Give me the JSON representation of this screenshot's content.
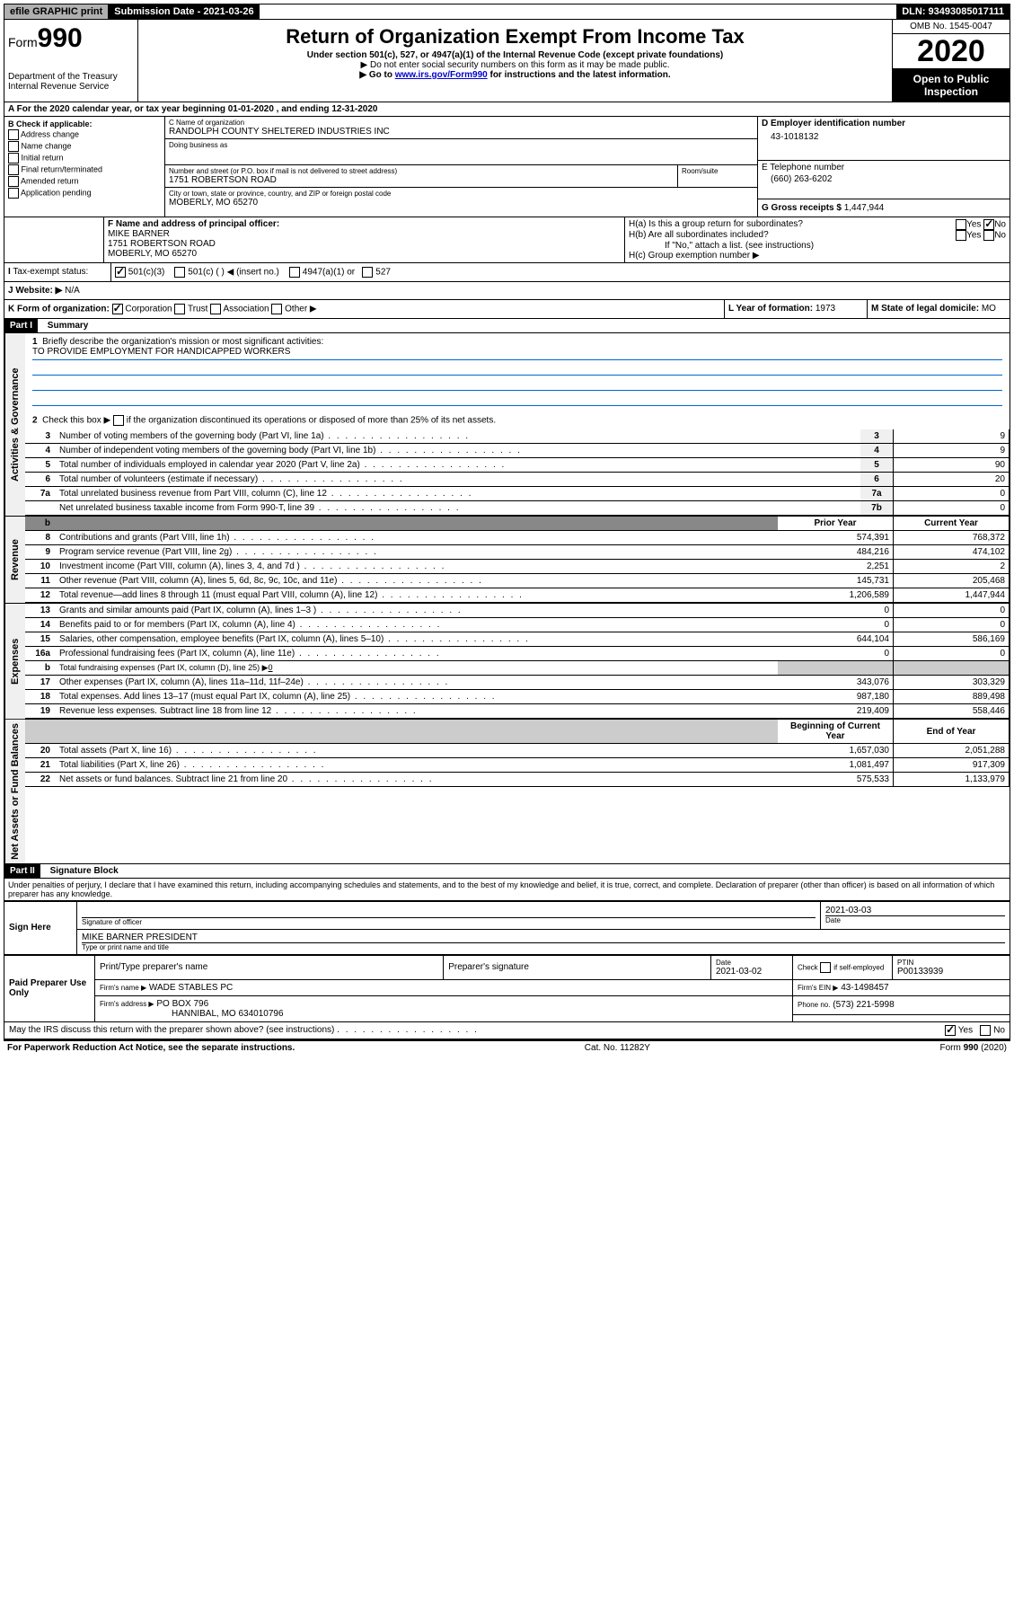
{
  "topbar": {
    "efile": "efile GRAPHIC print",
    "submission": "Submission Date - 2021-03-26",
    "dln": "DLN: 93493085017111"
  },
  "header": {
    "form_label": "Form",
    "form_num": "990",
    "dept": "Department of the Treasury",
    "irs": "Internal Revenue Service",
    "title": "Return of Organization Exempt From Income Tax",
    "sub": "Under section 501(c), 527, or 4947(a)(1) of the Internal Revenue Code (except private foundations)",
    "note1": "▶ Do not enter social security numbers on this form as it may be made public.",
    "note2_pre": "▶ Go to ",
    "note2_link": "www.irs.gov/Form990",
    "note2_post": " for instructions and the latest information.",
    "omb": "OMB No. 1545-0047",
    "year": "2020",
    "open": "Open to Public Inspection"
  },
  "line_a": "A For the 2020 calendar year, or tax year beginning 01-01-2020    , and ending 12-31-2020",
  "section_b": {
    "label": "B Check if applicable:",
    "items": [
      "Address change",
      "Name change",
      "Initial return",
      "Final return/terminated",
      "Amended return",
      "Application pending"
    ]
  },
  "section_c": {
    "label": "C Name of organization",
    "name": "RANDOLPH COUNTY SHELTERED INDUSTRIES INC",
    "dba_label": "Doing business as",
    "addr_label": "Number and street (or P.O. box if mail is not delivered to street address)",
    "room_label": "Room/suite",
    "addr": "1751 ROBERTSON ROAD",
    "city_label": "City or town, state or province, country, and ZIP or foreign postal code",
    "city": "MOBERLY, MO  65270"
  },
  "section_d": {
    "label": "D Employer identification number",
    "ein": "43-1018132"
  },
  "section_e": {
    "label": "E Telephone number",
    "phone": "(660) 263-6202"
  },
  "section_g": {
    "label": "G Gross receipts $",
    "val": "1,447,944"
  },
  "section_f": {
    "label": "F Name and address of principal officer:",
    "name": "MIKE BARNER",
    "addr1": "1751 ROBERTSON ROAD",
    "addr2": "MOBERLY, MO  65270"
  },
  "section_h": {
    "a": "H(a)  Is this a group return for subordinates?",
    "b": "H(b)  Are all subordinates included?",
    "c": "H(c)  Group exemption number ▶",
    "ifno": "If \"No,\" attach a list. (see instructions)",
    "yes": "Yes",
    "no": "No"
  },
  "tax_exempt": {
    "label": "Tax-exempt status:",
    "opt1": "501(c)(3)",
    "opt2": "501(c) (  ) ◀ (insert no.)",
    "opt3": "4947(a)(1) or",
    "opt4": "527"
  },
  "section_j": {
    "label": "J   Website: ▶",
    "val": "N/A"
  },
  "section_k": {
    "label": "K Form of organization:",
    "corp": "Corporation",
    "trust": "Trust",
    "assoc": "Association",
    "other": "Other ▶"
  },
  "section_l": {
    "label": "L Year of formation:",
    "val": "1973"
  },
  "section_m": {
    "label": "M State of legal domicile:",
    "val": "MO"
  },
  "part1": {
    "label": "Part I",
    "title": "Summary"
  },
  "vert_labels": {
    "gov": "Activities & Governance",
    "rev": "Revenue",
    "exp": "Expenses",
    "net": "Net Assets or Fund Balances"
  },
  "line1": {
    "num": "1",
    "label": "Briefly describe the organization's mission or most significant activities:",
    "val": "TO PROVIDE EMPLOYMENT FOR HANDICAPPED WORKERS"
  },
  "line2": {
    "num": "2",
    "label": "Check this box ▶",
    "label2": "if the organization discontinued its operations or disposed of more than 25% of its net assets."
  },
  "gov_lines": [
    {
      "n": "3",
      "d": "Number of voting members of the governing body (Part VI, line 1a)",
      "c": "3",
      "v": "9"
    },
    {
      "n": "4",
      "d": "Number of independent voting members of the governing body (Part VI, line 1b)",
      "c": "4",
      "v": "9"
    },
    {
      "n": "5",
      "d": "Total number of individuals employed in calendar year 2020 (Part V, line 2a)",
      "c": "5",
      "v": "90"
    },
    {
      "n": "6",
      "d": "Total number of volunteers (estimate if necessary)",
      "c": "6",
      "v": "20"
    },
    {
      "n": "7a",
      "d": "Total unrelated business revenue from Part VIII, column (C), line 12",
      "c": "7a",
      "v": "0"
    },
    {
      "n": "",
      "d": "Net unrelated business taxable income from Form 990-T, line 39",
      "c": "7b",
      "v": "0"
    }
  ],
  "col_headers": {
    "prior": "Prior Year",
    "current": "Current Year",
    "bcy": "Beginning of Current Year",
    "eoy": "End of Year"
  },
  "rev_lines": [
    {
      "n": "8",
      "d": "Contributions and grants (Part VIII, line 1h)",
      "p": "574,391",
      "c": "768,372"
    },
    {
      "n": "9",
      "d": "Program service revenue (Part VIII, line 2g)",
      "p": "484,216",
      "c": "474,102"
    },
    {
      "n": "10",
      "d": "Investment income (Part VIII, column (A), lines 3, 4, and 7d )",
      "p": "2,251",
      "c": "2"
    },
    {
      "n": "11",
      "d": "Other revenue (Part VIII, column (A), lines 5, 6d, 8c, 9c, 10c, and 11e)",
      "p": "145,731",
      "c": "205,468"
    },
    {
      "n": "12",
      "d": "Total revenue—add lines 8 through 11 (must equal Part VIII, column (A), line 12)",
      "p": "1,206,589",
      "c": "1,447,944"
    }
  ],
  "exp_lines": [
    {
      "n": "13",
      "d": "Grants and similar amounts paid (Part IX, column (A), lines 1–3 )",
      "p": "0",
      "c": "0"
    },
    {
      "n": "14",
      "d": "Benefits paid to or for members (Part IX, column (A), line 4)",
      "p": "0",
      "c": "0"
    },
    {
      "n": "15",
      "d": "Salaries, other compensation, employee benefits (Part IX, column (A), lines 5–10)",
      "p": "644,104",
      "c": "586,169"
    },
    {
      "n": "16a",
      "d": "Professional fundraising fees (Part IX, column (A), line 11e)",
      "p": "0",
      "c": "0"
    }
  ],
  "line16b": {
    "n": "b",
    "d": "Total fundraising expenses (Part IX, column (D), line 25) ▶",
    "v": "0"
  },
  "exp_lines2": [
    {
      "n": "17",
      "d": "Other expenses (Part IX, column (A), lines 11a–11d, 11f–24e)",
      "p": "343,076",
      "c": "303,329"
    },
    {
      "n": "18",
      "d": "Total expenses. Add lines 13–17 (must equal Part IX, column (A), line 25)",
      "p": "987,180",
      "c": "889,498"
    },
    {
      "n": "19",
      "d": "Revenue less expenses. Subtract line 18 from line 12",
      "p": "219,409",
      "c": "558,446"
    }
  ],
  "net_lines": [
    {
      "n": "20",
      "d": "Total assets (Part X, line 16)",
      "p": "1,657,030",
      "c": "2,051,288"
    },
    {
      "n": "21",
      "d": "Total liabilities (Part X, line 26)",
      "p": "1,081,497",
      "c": "917,309"
    },
    {
      "n": "22",
      "d": "Net assets or fund balances. Subtract line 21 from line 20",
      "p": "575,533",
      "c": "1,133,979"
    }
  ],
  "part2": {
    "label": "Part II",
    "title": "Signature Block"
  },
  "penalty": "Under penalties of perjury, I declare that I have examined this return, including accompanying schedules and statements, and to the best of my knowledge and belief, it is true, correct, and complete. Declaration of preparer (other than officer) is based on all information of which preparer has any knowledge.",
  "sign": {
    "here": "Sign Here",
    "sig_label": "Signature of officer",
    "date": "2021-03-03",
    "date_label": "Date",
    "name": "MIKE BARNER  PRESIDENT",
    "name_label": "Type or print name and title"
  },
  "preparer": {
    "label": "Paid Preparer Use Only",
    "col1": "Print/Type preparer's name",
    "col2": "Preparer's signature",
    "col3": "Date",
    "date": "2021-03-02",
    "col4": "Check",
    "col4b": "if self-employed",
    "col5": "PTIN",
    "ptin": "P00133939",
    "firm_label": "Firm's name    ▶",
    "firm": "WADE STABLES PC",
    "ein_label": "Firm's EIN ▶",
    "ein": "43-1498457",
    "addr_label": "Firm's address ▶",
    "addr": "PO BOX 796",
    "addr2": "HANNIBAL, MO  634010796",
    "phone_label": "Phone no.",
    "phone": "(573) 221-5998"
  },
  "discuss": {
    "q": "May the IRS discuss this return with the preparer shown above? (see instructions)",
    "yes": "Yes",
    "no": "No"
  },
  "footer": {
    "left": "For Paperwork Reduction Act Notice, see the separate instructions.",
    "mid": "Cat. No. 11282Y",
    "right": "Form 990 (2020)"
  }
}
